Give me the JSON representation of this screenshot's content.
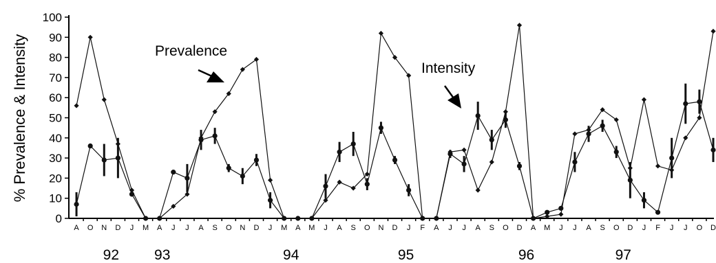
{
  "chart_data": {
    "type": "line",
    "ylabel": "% Prevalence & Intensity",
    "ylim": [
      0,
      100
    ],
    "yticks": [
      0,
      10,
      20,
      30,
      40,
      50,
      60,
      70,
      80,
      90,
      100
    ],
    "categories": [
      "A",
      "O",
      "N",
      "D",
      "J",
      "M",
      "A",
      "J",
      "J",
      "A",
      "S",
      "O",
      "N",
      "D",
      "J",
      "M",
      "A",
      "M",
      "J",
      "A",
      "S",
      "O",
      "N",
      "D",
      "J",
      "F",
      "A",
      "J",
      "J",
      "A",
      "S",
      "O",
      "D",
      "A",
      "M",
      "J",
      "J",
      "A",
      "S",
      "O",
      "D",
      "J",
      "F",
      "J",
      "J",
      "O",
      "D"
    ],
    "year_labels": [
      {
        "label": "92",
        "category_index": 2.5
      },
      {
        "label": "93",
        "category_index": 6.2
      },
      {
        "label": "94",
        "category_index": 15.5
      },
      {
        "label": "95",
        "category_index": 23.8
      },
      {
        "label": "96",
        "category_index": 32.5
      },
      {
        "label": "97",
        "category_index": 39.5
      }
    ],
    "annotations": [
      {
        "text": "Prevalence",
        "points_to_index": 11
      },
      {
        "text": "Intensity",
        "points_to_index": 28
      }
    ],
    "grid": false,
    "series": [
      {
        "name": "Prevalence",
        "marker": "diamond",
        "values": [
          56,
          90,
          59,
          37,
          14,
          0,
          0,
          6,
          12,
          40,
          53,
          62,
          74,
          79,
          19,
          0,
          0,
          0,
          9,
          18,
          15,
          22,
          92,
          80,
          71,
          0,
          0,
          33,
          34,
          14,
          28,
          53,
          96,
          0,
          1,
          2,
          42,
          44,
          54,
          49,
          25,
          59,
          26,
          24,
          40,
          50,
          93
        ]
      },
      {
        "name": "Intensity",
        "marker": "circle",
        "values": [
          7,
          36,
          29,
          30,
          12,
          0,
          0,
          23,
          20,
          39,
          41,
          25,
          21,
          29,
          9,
          0,
          0,
          0,
          16,
          33,
          37,
          17,
          45,
          29,
          14,
          0,
          0,
          32,
          27,
          51,
          39,
          49,
          26,
          0,
          3,
          5,
          28,
          42,
          46,
          33,
          19,
          9,
          3,
          30,
          57,
          58,
          34
        ],
        "error": [
          6,
          0,
          8,
          10,
          0,
          0,
          0,
          0,
          7,
          5,
          4,
          2,
          4,
          3,
          4,
          0,
          0,
          0,
          6,
          5,
          6,
          3,
          3,
          2,
          3,
          0,
          0,
          2,
          4,
          7,
          5,
          4,
          2,
          0,
          0,
          0,
          5,
          4,
          3,
          3,
          9,
          4,
          0,
          10,
          10,
          6,
          6
        ]
      }
    ]
  }
}
